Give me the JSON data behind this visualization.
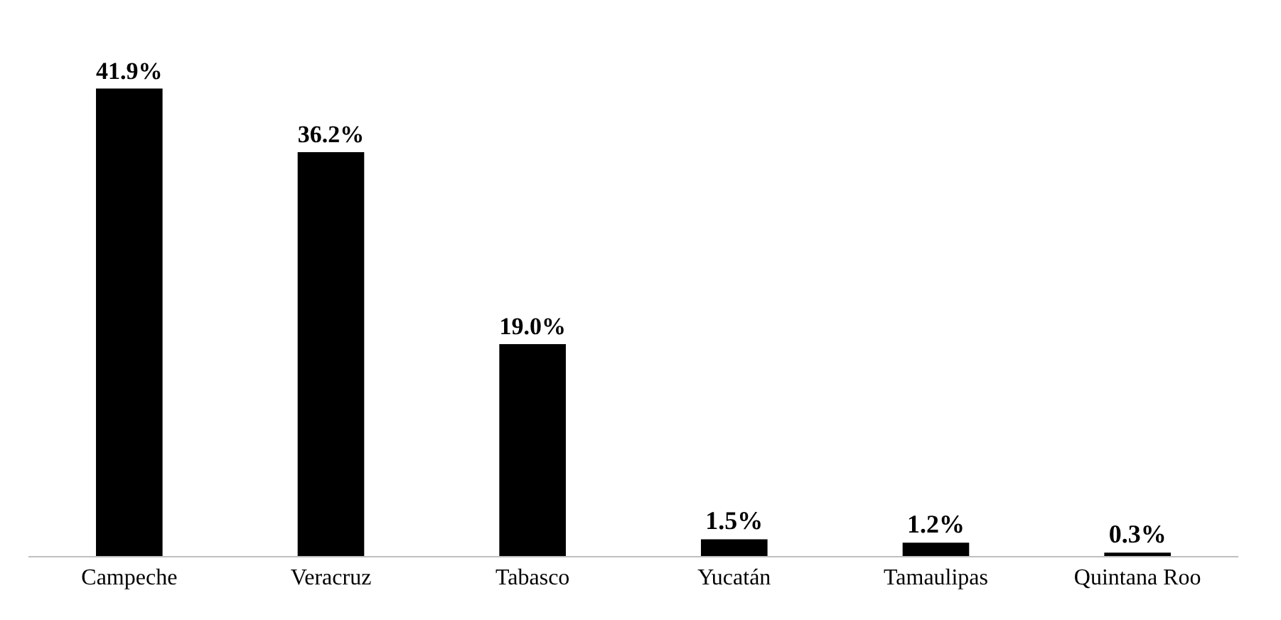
{
  "chart_data": {
    "type": "bar",
    "categories": [
      "Campeche",
      "Veracruz",
      "Tabasco",
      "Yucatán",
      "Tamaulipas",
      "Quintana Roo"
    ],
    "values": [
      41.9,
      36.2,
      19.0,
      1.5,
      1.2,
      0.3
    ],
    "value_labels": [
      "41.9%",
      "36.2%",
      "19.0%",
      "1.5%",
      "1.2%",
      "0.3%"
    ],
    "color": "#000000"
  }
}
